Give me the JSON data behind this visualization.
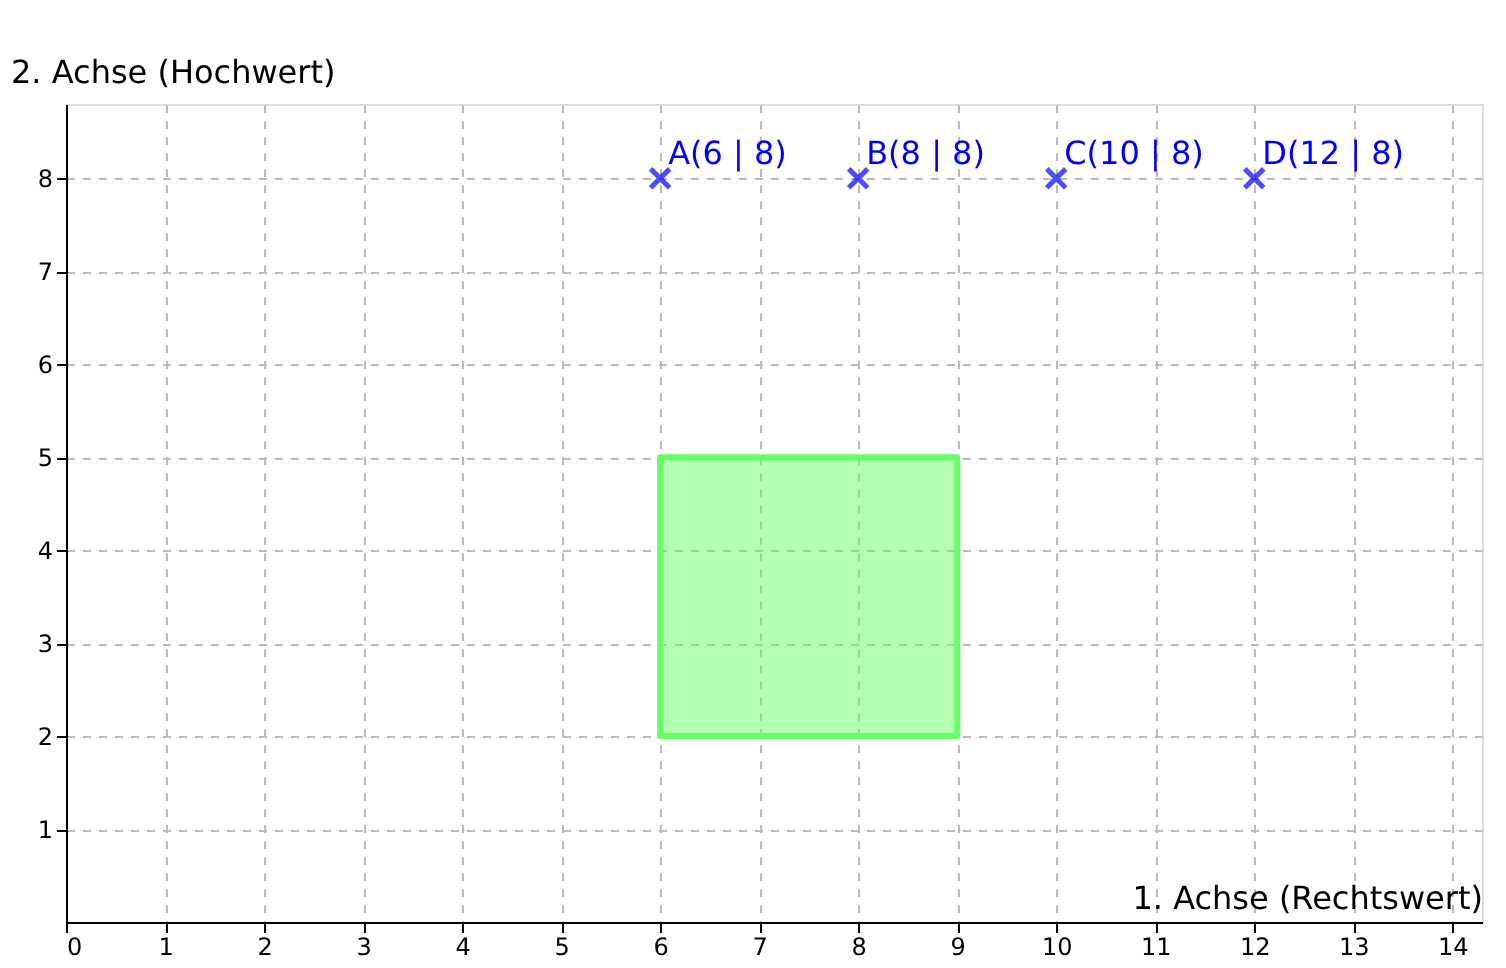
{
  "chart_data": {
    "type": "scatter",
    "xlabel": "1. Achse (Rechtswert)",
    "ylabel": "2. Achse (Hochwert)",
    "xlim": [
      0,
      14.3
    ],
    "ylim": [
      0,
      8.8
    ],
    "xticks": [
      0,
      1,
      2,
      3,
      4,
      5,
      6,
      7,
      8,
      9,
      10,
      11,
      12,
      13,
      14
    ],
    "yticks": [
      1,
      2,
      3,
      4,
      5,
      6,
      7,
      8
    ],
    "grid": true,
    "series": [
      {
        "color": "#0000ff",
        "marker": "cross",
        "x": [
          6,
          8,
          10,
          12
        ],
        "values": [
          8,
          8,
          8,
          8
        ]
      },
      {
        "type": "area",
        "color": "#66ff66",
        "x": [
          6,
          9,
          9,
          6
        ],
        "values": [
          2,
          2,
          5,
          5
        ]
      }
    ],
    "annotations": [
      {
        "text": "A(6 | 8)",
        "x": 6,
        "y": 8
      },
      {
        "text": "B(8 | 8)",
        "x": 8,
        "y": 8
      },
      {
        "text": "C(10 | 8)",
        "x": 10,
        "y": 8
      },
      {
        "text": "D(12 | 8)",
        "x": 12,
        "y": 8
      }
    ]
  }
}
